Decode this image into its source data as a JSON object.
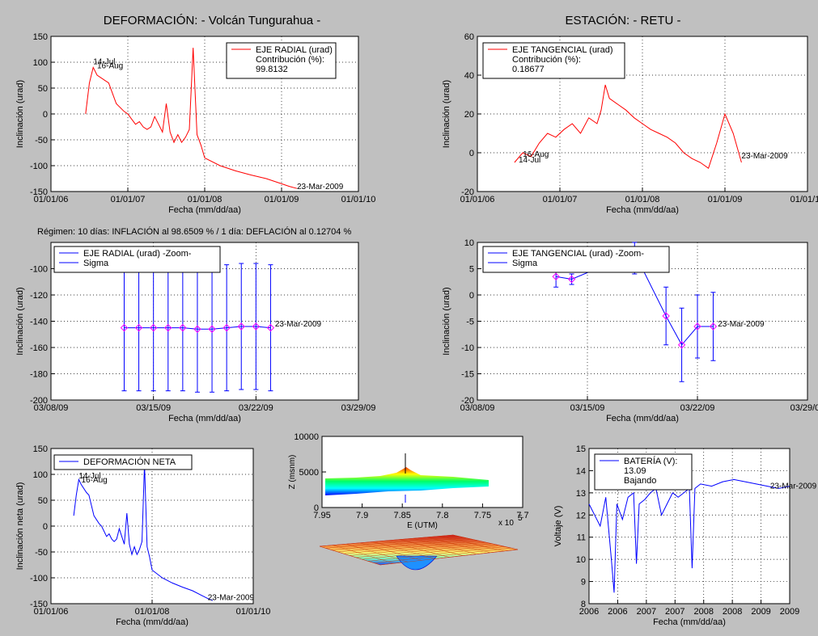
{
  "titles": {
    "left": "DEFORMACIÓN: - Volcán Tungurahua -",
    "right": "ESTACIÓN: - RETU -"
  },
  "regimen_text": "Régimen: 10 días: INFLACIÓN al 98.6509 % / 1 día: DEFLACIÓN al 0.12704 %",
  "colors": {
    "red": "#ff0000",
    "blue": "#0000ff",
    "bg": "#c0c0c0",
    "magenta": "#ff00ff"
  },
  "chart_data": [
    {
      "id": "radial",
      "type": "line",
      "title": "",
      "xlabel": "Fecha (mm/dd/aa)",
      "ylabel": "Inclinación (urad)",
      "xticks": [
        "01/01/06",
        "01/01/07",
        "01/01/08",
        "01/01/09",
        "01/01/10"
      ],
      "yticks": [
        "150",
        "100",
        "50",
        "0",
        "-50",
        "-100",
        "-150"
      ],
      "ylim": [
        -150,
        150
      ],
      "grid": true,
      "legend": {
        "placement": "top-right",
        "entries": [
          "EJE RADIAL (urad)",
          "Contribución (%):",
          "99.8132"
        ]
      },
      "annotations": [
        "14-Jul",
        "16-Aug",
        "23-Mar-2009"
      ],
      "series": [
        {
          "color": "#ff0000",
          "x": [
            2006.45,
            2006.5,
            2006.55,
            2006.6,
            2006.7,
            2006.75,
            2006.8,
            2006.85,
            2006.95,
            2007.0,
            2007.05,
            2007.1,
            2007.15,
            2007.2,
            2007.25,
            2007.3,
            2007.35,
            2007.4,
            2007.45,
            2007.5,
            2007.55,
            2007.6,
            2007.65,
            2007.7,
            2007.75,
            2007.8,
            2007.85,
            2007.9,
            2007.95,
            2008.0,
            2008.2,
            2008.4,
            2008.6,
            2008.8,
            2009.0,
            2009.1,
            2009.2
          ],
          "y": [
            0,
            60,
            90,
            75,
            65,
            60,
            40,
            20,
            5,
            0,
            -10,
            -20,
            -15,
            -25,
            -30,
            -25,
            -5,
            -20,
            -35,
            20,
            -35,
            -55,
            -40,
            -55,
            -45,
            -30,
            128,
            -40,
            -60,
            -85,
            -100,
            -110,
            -118,
            -125,
            -135,
            -140,
            -144
          ]
        }
      ]
    },
    {
      "id": "tangencial",
      "type": "line",
      "title": "",
      "xlabel": "Fecha (mm/dd/aa)",
      "ylabel": "Inclinación (urad)",
      "xticks": [
        "01/01/06",
        "01/01/07",
        "01/01/08",
        "01/01/09",
        "01/01/10"
      ],
      "yticks": [
        "60",
        "40",
        "20",
        "0",
        "-20"
      ],
      "ylim": [
        -20,
        60
      ],
      "grid": true,
      "legend": {
        "placement": "top-left",
        "entries": [
          "EJE TANGENCIAL (urad)",
          "Contribución (%):",
          "0.18677"
        ]
      },
      "annotations": [
        "16-Aug",
        "14-Jul",
        "23-Mar-2009"
      ],
      "series": [
        {
          "color": "#ff0000",
          "x": [
            2006.45,
            2006.55,
            2006.65,
            2006.75,
            2006.85,
            2006.95,
            2007.05,
            2007.15,
            2007.25,
            2007.35,
            2007.45,
            2007.5,
            2007.55,
            2007.6,
            2007.7,
            2007.8,
            2007.9,
            2008.0,
            2008.1,
            2008.2,
            2008.3,
            2008.4,
            2008.5,
            2008.6,
            2008.7,
            2008.8,
            2008.9,
            2009.0,
            2009.1,
            2009.2
          ],
          "y": [
            -5,
            0,
            -2,
            5,
            10,
            8,
            12,
            15,
            10,
            18,
            15,
            22,
            35,
            28,
            25,
            22,
            18,
            15,
            12,
            10,
            8,
            5,
            0,
            -3,
            -5,
            -8,
            5,
            20,
            10,
            -5
          ]
        }
      ]
    },
    {
      "id": "radial-zoom",
      "type": "line",
      "title": "",
      "xlabel": "Fecha (mm/dd/aa)",
      "ylabel": "Inclinación (urad)",
      "xticks": [
        "03/08/09",
        "03/15/09",
        "03/22/09",
        "03/29/09"
      ],
      "yticks": [
        "-100",
        "-120",
        "-140",
        "-160",
        "-180",
        "-200"
      ],
      "ylim": [
        -200,
        -80
      ],
      "grid": true,
      "legend": {
        "placement": "top-left",
        "entries": [
          "EJE RADIAL (urad) -Zoom-",
          "Sigma"
        ]
      },
      "annotations": [
        "23-Mar-2009"
      ],
      "series": [
        {
          "color": "#0000ff",
          "x": [
            13,
            14,
            15,
            16,
            17,
            18,
            19,
            20,
            21,
            22,
            23
          ],
          "y": [
            -145,
            -145,
            -145,
            -145,
            -145,
            -146,
            -146,
            -145,
            -144,
            -144,
            -145
          ],
          "sigma": [
            48,
            48,
            48,
            48,
            48,
            48,
            48,
            48,
            48,
            48,
            48
          ]
        }
      ]
    },
    {
      "id": "tangencial-zoom",
      "type": "line",
      "title": "",
      "xlabel": "Fecha (mm/dd/aa)",
      "ylabel": "Inclinación (urad)",
      "xticks": [
        "03/08/09",
        "03/15/09",
        "03/22/09",
        "03/29/09"
      ],
      "yticks": [
        "10",
        "5",
        "0",
        "-5",
        "-10",
        "-15",
        "-20"
      ],
      "ylim": [
        -20,
        10
      ],
      "grid": true,
      "legend": {
        "placement": "top-left",
        "entries": [
          "EJE TANGENCIAL (urad) -Zoom-",
          "Sigma"
        ]
      },
      "annotations": [
        "23-Mar-2009"
      ],
      "series": [
        {
          "color": "#0000ff",
          "x": [
            13,
            14,
            18,
            20,
            21,
            22,
            23
          ],
          "y": [
            3.5,
            3,
            8,
            -4,
            -9.5,
            -6,
            -6
          ],
          "sigma": [
            2,
            1,
            4,
            5.5,
            7,
            6,
            6.5
          ]
        }
      ]
    },
    {
      "id": "neta",
      "type": "line",
      "title": "",
      "xlabel": "Fecha (mm/dd/aa)",
      "ylabel": "Inclinación neta (urad)",
      "xticks": [
        "01/01/06",
        "01/01/08",
        "01/01/10"
      ],
      "yticks": [
        "150",
        "100",
        "50",
        "0",
        "-50",
        "-100",
        "-150"
      ],
      "ylim": [
        -150,
        150
      ],
      "grid": true,
      "legend": {
        "placement": "top-left",
        "entries": [
          "DEFORMACIÓN NETA"
        ]
      },
      "annotations": [
        "14-Jul",
        "16-Aug",
        "23-Mar-2009"
      ],
      "series": [
        {
          "color": "#0000ff",
          "x": [
            2006.45,
            2006.5,
            2006.55,
            2006.6,
            2006.7,
            2006.75,
            2006.8,
            2006.85,
            2006.95,
            2007.0,
            2007.05,
            2007.1,
            2007.15,
            2007.2,
            2007.25,
            2007.3,
            2007.35,
            2007.4,
            2007.45,
            2007.5,
            2007.55,
            2007.6,
            2007.65,
            2007.7,
            2007.75,
            2007.8,
            2007.85,
            2007.9,
            2007.95,
            2008.0,
            2008.2,
            2008.4,
            2008.6,
            2008.8,
            2009.0,
            2009.1,
            2009.2
          ],
          "y": [
            20,
            60,
            90,
            80,
            65,
            60,
            40,
            20,
            5,
            0,
            -10,
            -20,
            -15,
            -25,
            -30,
            -25,
            -5,
            -20,
            -35,
            25,
            -35,
            -55,
            -40,
            -55,
            -45,
            -30,
            120,
            -40,
            -60,
            -85,
            -100,
            -110,
            -118,
            -125,
            -135,
            -140,
            -144
          ]
        }
      ]
    },
    {
      "id": "surface",
      "type": "heatmap",
      "title": "",
      "xlabel": "E (UTM)",
      "ylabel": "Z (msnm)",
      "xticks": [
        "7.95",
        "7.9",
        "7.85",
        "7.8",
        "7.75",
        "7.7"
      ],
      "yticks": [
        "10000",
        "5000",
        "0"
      ],
      "exponent_label": "x 10",
      "exponent_power": "5"
    },
    {
      "id": "bateria",
      "type": "line",
      "title": "",
      "xlabel": "Fecha (mm/dd/aa)",
      "ylabel": "Voltaje (V)",
      "xticks": [
        "2006",
        "2006",
        "2007",
        "2007",
        "2008",
        "2008",
        "2009",
        "2009"
      ],
      "yticks": [
        "15",
        "14",
        "13",
        "12",
        "11",
        "10",
        "9",
        "8"
      ],
      "ylim": [
        8,
        15
      ],
      "grid": true,
      "legend": {
        "placement": "top-left",
        "entries": [
          "BATERÍA (V):",
          "13.09",
          "Bajando"
        ]
      },
      "annotations": [
        "23-Mar-2009"
      ],
      "series": [
        {
          "color": "#0000ff",
          "x": [
            2006.0,
            2006.1,
            2006.2,
            2006.3,
            2006.4,
            2006.45,
            2006.5,
            2006.6,
            2006.7,
            2006.8,
            2006.85,
            2006.9,
            2007.0,
            2007.1,
            2007.2,
            2007.3,
            2007.4,
            2007.5,
            2007.6,
            2007.7,
            2007.8,
            2007.85,
            2007.9,
            2008.0,
            2008.2,
            2008.4,
            2008.6,
            2008.8,
            2009.0,
            2009.2,
            2009.4,
            2009.6
          ],
          "y": [
            12.5,
            12.0,
            11.5,
            12.8,
            10.0,
            8.5,
            12.5,
            11.8,
            12.8,
            13.0,
            9.8,
            12.5,
            12.7,
            13.0,
            13.2,
            12.0,
            12.5,
            13.0,
            12.8,
            13.0,
            13.2,
            9.6,
            13.2,
            13.4,
            13.3,
            13.5,
            13.6,
            13.5,
            13.4,
            13.3,
            13.2,
            13.3
          ]
        }
      ]
    }
  ]
}
